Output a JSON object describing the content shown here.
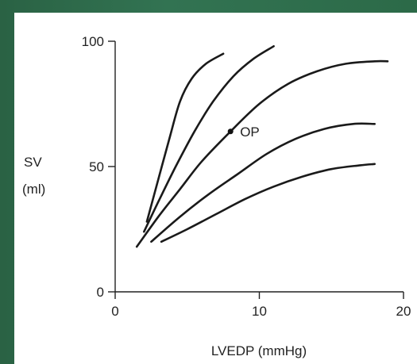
{
  "chart_data": {
    "type": "line",
    "title": "",
    "xlabel": "LVEDP (mmHg)",
    "ylabel_line1": "SV",
    "ylabel_line2": "(ml)",
    "xlim": [
      0,
      20
    ],
    "ylim": [
      0,
      100
    ],
    "x_ticks": [
      0,
      10,
      20
    ],
    "y_ticks": [
      0,
      50,
      100
    ],
    "grid": false,
    "series": [
      {
        "x": [
          2.2,
          3.0,
          3.8,
          4.5,
          5.3,
          6.3,
          7.5
        ],
        "values": [
          28,
          45,
          62,
          76,
          85,
          91,
          95
        ]
      },
      {
        "x": [
          2.0,
          3.0,
          4.2,
          5.5,
          6.8,
          8.2,
          9.6,
          11.0
        ],
        "values": [
          24,
          36,
          50,
          64,
          76,
          86,
          93,
          98
        ]
      },
      {
        "x": [
          1.5,
          3.0,
          4.5,
          6.0,
          8.0,
          10.0,
          12.0,
          14.0,
          16.0,
          18.0,
          18.9
        ],
        "values": [
          18,
          30,
          41,
          52,
          64,
          75,
          83,
          88,
          91,
          92,
          92
        ]
      },
      {
        "x": [
          2.5,
          4.5,
          6.5,
          8.5,
          10.5,
          12.5,
          14.5,
          16.5,
          18.0
        ],
        "values": [
          20,
          30,
          39,
          47,
          55,
          61,
          65,
          67,
          67
        ]
      },
      {
        "x": [
          3.2,
          5.0,
          7.0,
          9.0,
          11.0,
          13.0,
          15.0,
          17.0,
          18.0
        ],
        "values": [
          20,
          25,
          31,
          37,
          42,
          46,
          49,
          50.5,
          51
        ]
      }
    ],
    "annotations": [
      {
        "text": "OP",
        "x": 8.0,
        "y": 64
      }
    ]
  }
}
